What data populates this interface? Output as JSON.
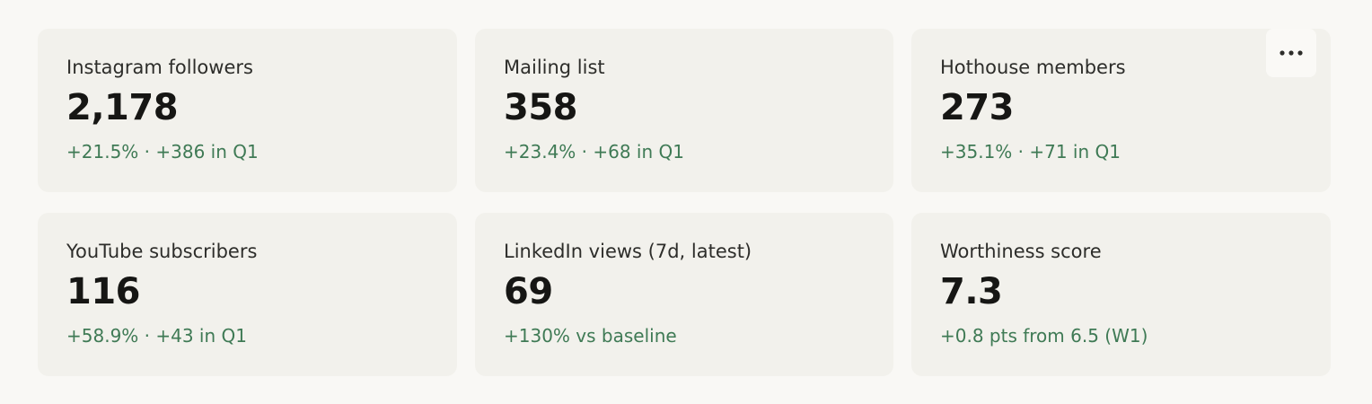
{
  "cards": [
    {
      "label": "Instagram followers",
      "value": "2,178",
      "change": "+21.5% · +386 in Q1"
    },
    {
      "label": "Mailing list",
      "value": "358",
      "change": "+23.4% · +68 in Q1"
    },
    {
      "label": "Hothouse members",
      "value": "273",
      "change": "+35.1% · +71 in Q1"
    },
    {
      "label": "YouTube subscribers",
      "value": "116",
      "change": "+58.9% · +43 in Q1"
    },
    {
      "label": "LinkedIn views (7d, latest)",
      "value": "69",
      "change": "+130% vs baseline"
    },
    {
      "label": "Worthiness score",
      "value": "7.3",
      "change": "+0.8 pts from 6.5 (W1)"
    }
  ]
}
